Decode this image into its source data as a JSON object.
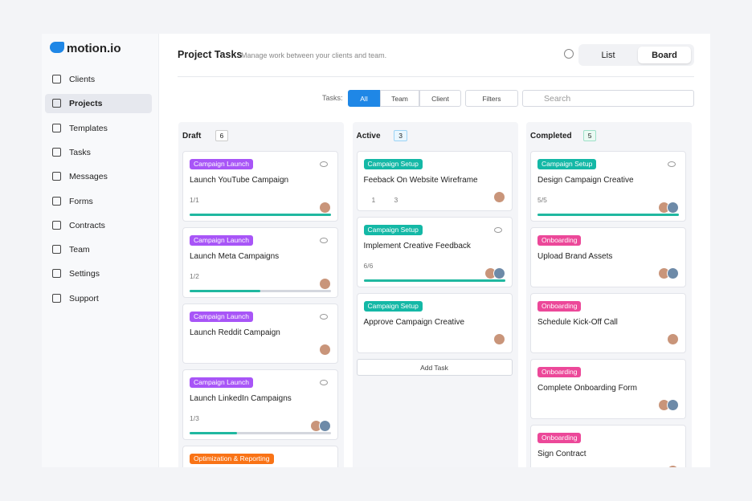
{
  "sidebar": {
    "logo": "motion.io",
    "nav": [
      "Clients",
      "Projects",
      "Templates",
      "Tasks",
      "Messages",
      "Forms",
      "Contracts",
      "Team",
      "Settings",
      "Support"
    ],
    "active": 1
  },
  "header": {
    "title": "Project Tasks",
    "subtitle": "Manage work between your clients and team.",
    "views": [
      "List",
      "Board"
    ],
    "active_view": 1
  },
  "toolbar": {
    "label": "Tasks:",
    "filters": [
      "All",
      "Team",
      "Client"
    ],
    "active_filter": 0,
    "filters_button": "Filters",
    "search": "Search"
  },
  "columns": [
    {
      "name": "Draft",
      "count": 6,
      "cards": [
        {
          "tag": "Campaign Launch",
          "color": "#a855f7",
          "title": "Launch YouTube Campaign",
          "checklist": "1/1",
          "watch": true,
          "avatars": 1
        },
        {
          "tag": "Campaign Launch",
          "color": "#a855f7",
          "title": "Launch Meta Campaigns",
          "checklist": "1/2",
          "watch": true,
          "avatars": 1
        },
        {
          "tag": "Campaign Launch",
          "color": "#a855f7",
          "title": "Launch Reddit Campaign",
          "watch": true,
          "avatars": 1
        },
        {
          "tag": "Campaign Launch",
          "color": "#a855f7",
          "title": "Launch LinkedIn Campaigns",
          "checklist": "1/3",
          "watch": true,
          "avatars": 2
        },
        {
          "tag": "Optimization & Reporting",
          "color": "#f97316",
          "title": "",
          "watch": false,
          "avatars": 0
        }
      ]
    },
    {
      "name": "Active",
      "count": 3,
      "cards": [
        {
          "tag": "Campaign Setup",
          "color": "#14b8a6",
          "title": "Feeback On Website Wireframe",
          "comments": "1",
          "attachments": "3",
          "watch": false,
          "avatars": 1
        },
        {
          "tag": "Campaign Setup",
          "color": "#14b8a6",
          "title": "Implement Creative Feedback",
          "checklist": "6/6",
          "watch": true,
          "avatars": 2
        },
        {
          "tag": "Campaign Setup",
          "color": "#14b8a6",
          "title": "Approve Campaign Creative",
          "watch": false,
          "avatars": 1
        }
      ],
      "add": "Add Task"
    },
    {
      "name": "Completed",
      "count": 5,
      "cards": [
        {
          "tag": "Campaign Setup",
          "color": "#14b8a6",
          "title": "Design Campaign Creative",
          "checklist": "5/5",
          "watch": true,
          "avatars": 2
        },
        {
          "tag": "Onboarding",
          "color": "#ec4899",
          "title": "Upload Brand Assets",
          "watch": false,
          "avatars": 2
        },
        {
          "tag": "Onboarding",
          "color": "#ec4899",
          "title": "Schedule Kick-Off Call",
          "watch": false,
          "avatars": 1
        },
        {
          "tag": "Onboarding",
          "color": "#ec4899",
          "title": "Complete Onboarding Form",
          "watch": false,
          "avatars": 2
        },
        {
          "tag": "Onboarding",
          "color": "#ec4899",
          "title": "Sign Contract",
          "watch": false,
          "avatars": 1
        }
      ]
    }
  ]
}
